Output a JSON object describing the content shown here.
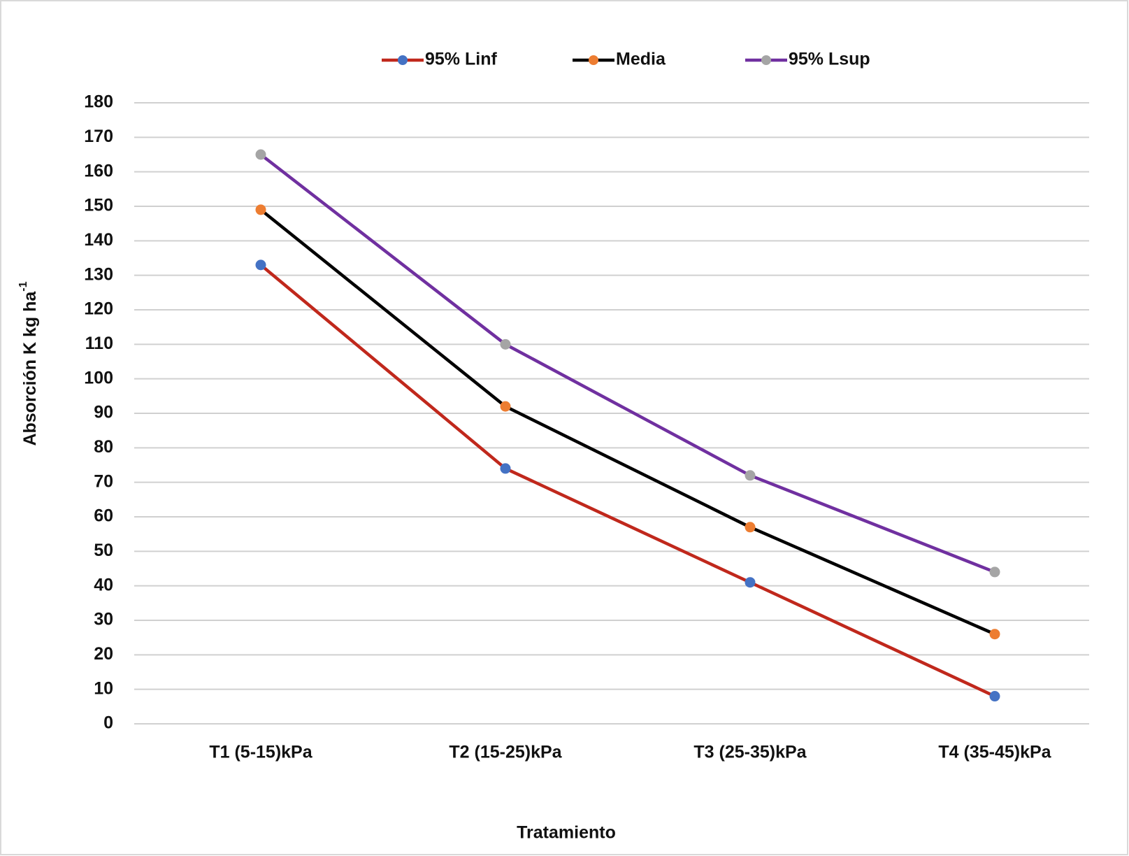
{
  "chart_data": {
    "type": "line",
    "x_label": "Tratamiento",
    "y_label": "Absorción K kg ha",
    "y_label_sup": "-1",
    "categories": [
      "T1 (5-15)kPa",
      "T2 (15-25)kPa",
      "T3 (25-35)kPa",
      "T4 (35-45)kPa"
    ],
    "series": [
      {
        "name": "95% Linf",
        "color": "#c0281c",
        "marker_color": "#4472c4",
        "values": [
          133,
          74,
          41,
          8
        ]
      },
      {
        "name": "Media",
        "color": "#000000",
        "marker_color": "#ed7d31",
        "values": [
          149,
          92,
          57,
          26
        ]
      },
      {
        "name": "95% Lsup",
        "color": "#7030a0",
        "marker_color": "#a5a5a5",
        "values": [
          165,
          110,
          72,
          44
        ]
      }
    ],
    "ylim": [
      0,
      180
    ],
    "yticks": [
      0,
      10,
      20,
      30,
      40,
      50,
      60,
      70,
      80,
      90,
      100,
      110,
      120,
      130,
      140,
      150,
      160,
      170,
      180
    ],
    "grid": true,
    "legend": "top"
  }
}
